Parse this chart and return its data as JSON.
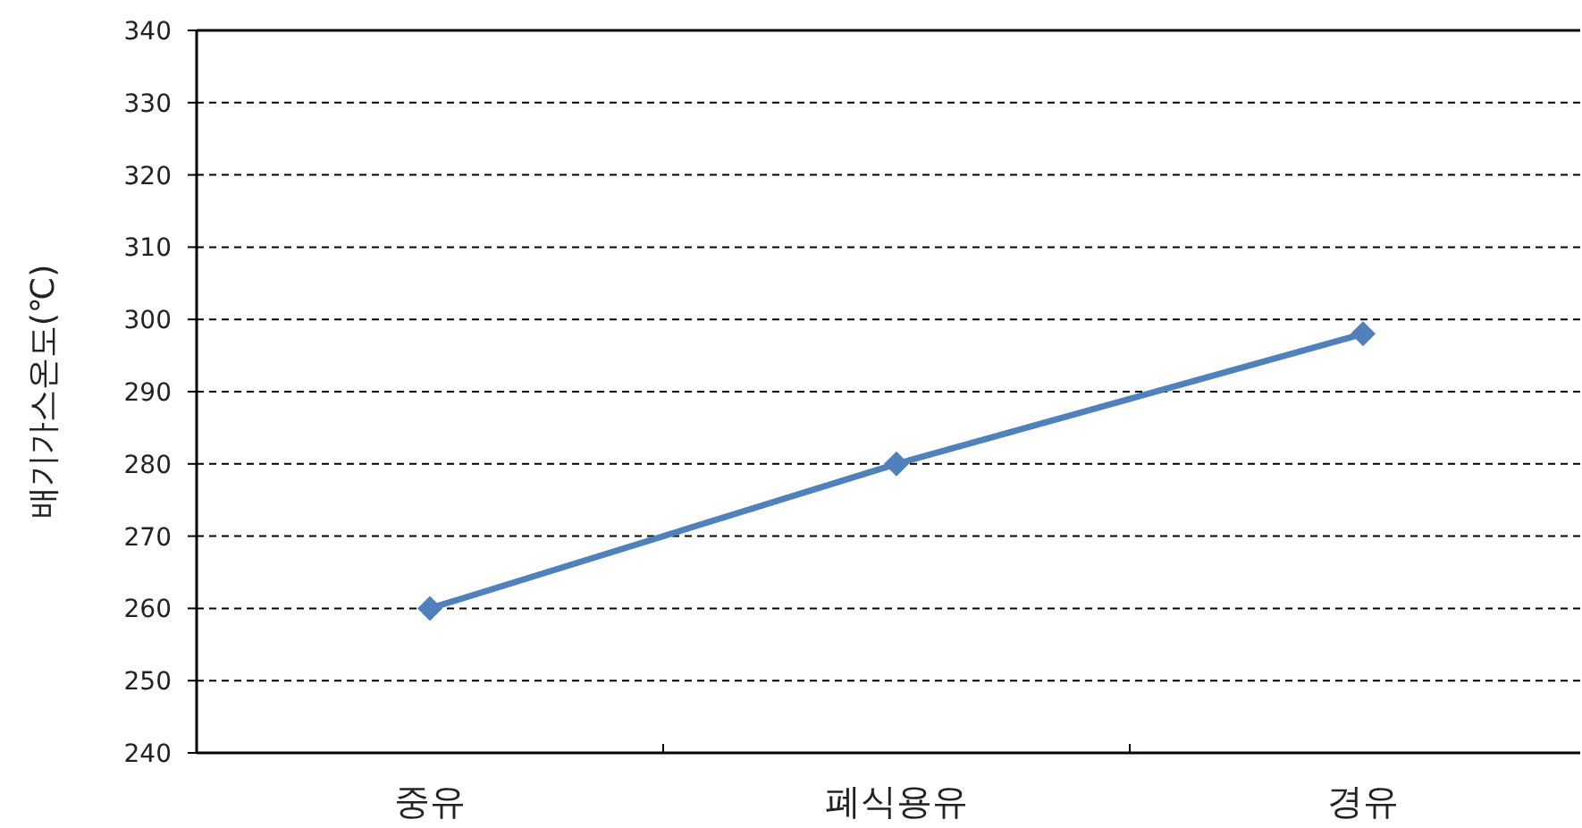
{
  "chart_data": {
    "type": "line",
    "ylabel": "배기가스온도(℃)",
    "categories": [
      "중유",
      "폐식용유",
      "경유"
    ],
    "series": [
      {
        "color": "#4f81bd",
        "values": [
          260,
          280,
          298
        ]
      }
    ],
    "ylim": [
      240,
      340
    ],
    "yticks": [
      240,
      250,
      260,
      270,
      280,
      290,
      300,
      310,
      320,
      330,
      340
    ],
    "grid": "y",
    "marker": "diamond",
    "line_style": "solid"
  }
}
